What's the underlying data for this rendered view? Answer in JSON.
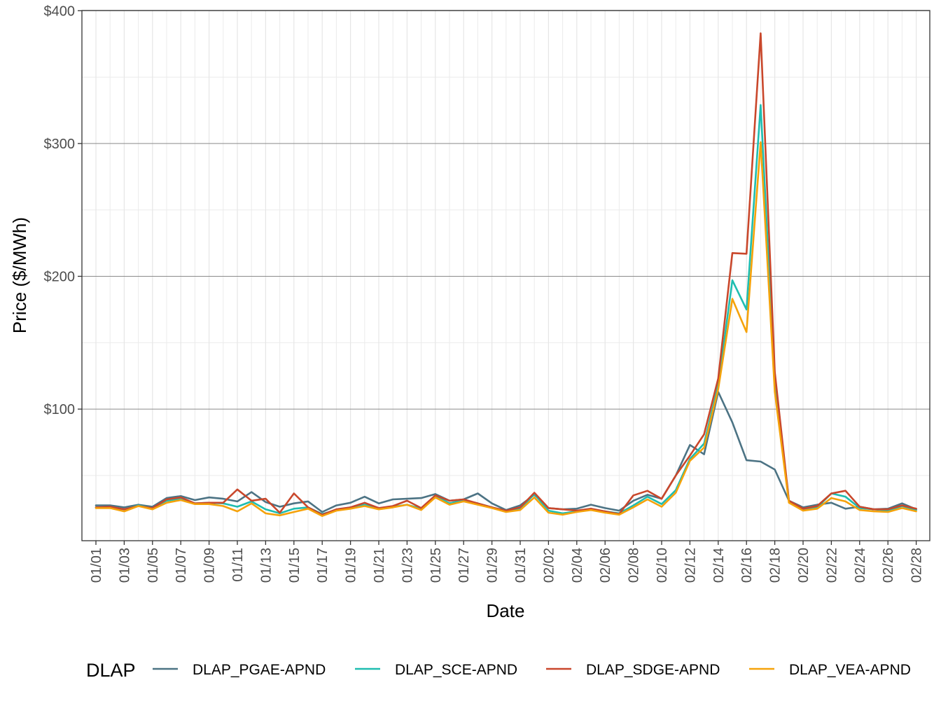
{
  "chart_data": {
    "type": "line",
    "xlabel": "Date",
    "ylabel": "Price ($/MWh)",
    "ylim": [
      0,
      400
    ],
    "y_ticks": [
      100,
      200,
      300,
      400
    ],
    "y_tick_labels": [
      "$100",
      "$200",
      "$300",
      "$400"
    ],
    "x_tick_labels": [
      "01/01",
      "01/03",
      "01/05",
      "01/07",
      "01/09",
      "01/11",
      "01/13",
      "01/15",
      "01/17",
      "01/19",
      "01/21",
      "01/23",
      "01/25",
      "01/27",
      "01/29",
      "01/31",
      "02/02",
      "02/04",
      "02/06",
      "02/08",
      "02/10",
      "02/12",
      "02/14",
      "02/16",
      "02/18",
      "02/20",
      "02/22",
      "02/24",
      "02/26",
      "02/28"
    ],
    "grid": true,
    "legend_position": "bottom",
    "legend_title": "DLAP",
    "x": [
      "01/01",
      "01/02",
      "01/03",
      "01/04",
      "01/05",
      "01/06",
      "01/07",
      "01/08",
      "01/09",
      "01/10",
      "01/11",
      "01/12",
      "01/13",
      "01/14",
      "01/15",
      "01/16",
      "01/17",
      "01/18",
      "01/19",
      "01/20",
      "01/21",
      "01/22",
      "01/23",
      "01/24",
      "01/25",
      "01/26",
      "01/27",
      "01/28",
      "01/29",
      "01/30",
      "01/31",
      "02/01",
      "02/02",
      "02/03",
      "02/04",
      "02/05",
      "02/06",
      "02/07",
      "02/08",
      "02/09",
      "02/10",
      "02/11",
      "02/12",
      "02/13",
      "02/14",
      "02/15",
      "02/16",
      "02/17",
      "02/18",
      "02/19",
      "02/20",
      "02/21",
      "02/22",
      "02/23",
      "02/24",
      "02/25",
      "02/26",
      "02/27",
      "02/28"
    ],
    "series": [
      {
        "name": "DLAP_PGAE-APND",
        "color": "#4c7384",
        "values": [
          27.5,
          27.5,
          26,
          28,
          26.5,
          33,
          34.5,
          31.5,
          33.5,
          32.5,
          30.5,
          37.5,
          30,
          26.5,
          29,
          30.5,
          22.5,
          27.5,
          29.5,
          34,
          29,
          32,
          32.5,
          33,
          36,
          31,
          32,
          36.5,
          29,
          24,
          27.5,
          35.5,
          25.5,
          24.5,
          25,
          28,
          25.5,
          23.5,
          31,
          35.5,
          32.5,
          50,
          73,
          66,
          113,
          90,
          61.5,
          60.5,
          54.5,
          31,
          26,
          28,
          29.5,
          25,
          26.5,
          24.5,
          25,
          29,
          24.5
        ]
      },
      {
        "name": "DLAP_SCE-APND",
        "color": "#1fbdb0",
        "values": [
          26,
          26,
          24.5,
          27.5,
          25.5,
          31,
          32.5,
          29,
          29.5,
          29,
          26.5,
          30.5,
          24.5,
          21.5,
          25,
          26,
          21,
          24,
          26,
          28,
          25.5,
          26.5,
          28,
          25,
          35,
          29,
          31.5,
          29,
          26,
          23,
          25,
          36,
          23.5,
          21.5,
          23,
          24.5,
          23,
          21.5,
          27.5,
          34,
          28.5,
          39,
          62.5,
          74,
          118,
          197,
          175,
          329,
          120,
          31,
          24.5,
          26,
          36.5,
          34,
          25.5,
          24.5,
          23.5,
          27,
          24
        ]
      },
      {
        "name": "DLAP_SDGE-APND",
        "color": "#c9472b",
        "values": [
          26,
          26.5,
          24.5,
          27,
          25.5,
          32,
          33.5,
          29,
          29.5,
          29.5,
          39.5,
          31,
          32.5,
          22,
          36.5,
          26,
          20.5,
          24.5,
          26,
          29.5,
          25.5,
          27,
          31,
          25.5,
          35,
          31,
          32,
          29,
          26,
          23.5,
          26,
          37,
          25.5,
          24.5,
          23.5,
          25,
          23,
          21,
          35,
          38.5,
          32.5,
          50,
          65,
          81,
          123,
          217.5,
          217,
          383,
          128,
          31,
          25,
          27,
          36.5,
          38.5,
          26.5,
          24.5,
          24.5,
          27.5,
          25
        ]
      },
      {
        "name": "DLAP_VEA-APND",
        "color": "#f5a20a",
        "values": [
          25.5,
          25.5,
          23,
          27,
          24.5,
          29.5,
          31.5,
          28.5,
          28.5,
          27,
          23,
          29,
          21.5,
          20,
          22.5,
          25,
          19.5,
          23.5,
          25,
          27,
          24.5,
          26,
          28,
          24,
          33.5,
          28,
          30.5,
          28,
          25.5,
          22.5,
          24,
          33.5,
          22,
          20.5,
          22.5,
          24,
          22,
          20.5,
          26,
          32,
          26.5,
          37,
          61,
          71,
          115,
          183,
          158,
          301,
          113,
          29.5,
          23.5,
          25,
          33,
          30.5,
          24,
          23,
          22.5,
          25.5,
          23
        ]
      }
    ]
  }
}
